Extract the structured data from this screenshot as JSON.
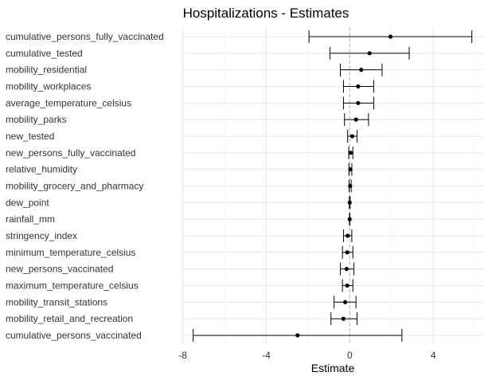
{
  "chart_data": {
    "type": "scatter",
    "title": "Hospitalizations - Estimates",
    "xlabel": "Estimate",
    "ylabel": "",
    "xlim": [
      -8,
      6.3
    ],
    "xticks": [
      -8,
      -4,
      0,
      4
    ],
    "xtick_labels": [
      "-8",
      "-4",
      "0",
      "4"
    ],
    "reference_line": 0,
    "grid": true,
    "error_bars": true,
    "variables": [
      {
        "label": "cumulative_persons_fully_vaccinated",
        "estimate": 1.95,
        "lower": -1.95,
        "upper": 5.85
      },
      {
        "label": "cumulative_tested",
        "estimate": 0.95,
        "lower": -0.95,
        "upper": 2.85
      },
      {
        "label": "mobility_residential",
        "estimate": 0.55,
        "lower": -0.45,
        "upper": 1.55
      },
      {
        "label": "mobility_workplaces",
        "estimate": 0.4,
        "lower": -0.3,
        "upper": 1.15
      },
      {
        "label": "average_temperature_celsius",
        "estimate": 0.4,
        "lower": -0.3,
        "upper": 1.15
      },
      {
        "label": "mobility_parks",
        "estimate": 0.3,
        "lower": -0.25,
        "upper": 0.9
      },
      {
        "label": "new_tested",
        "estimate": 0.12,
        "lower": -0.1,
        "upper": 0.35
      },
      {
        "label": "new_persons_fully_vaccinated",
        "estimate": 0.05,
        "lower": -0.05,
        "upper": 0.15
      },
      {
        "label": "relative_humidity",
        "estimate": 0.03,
        "lower": -0.04,
        "upper": 0.1
      },
      {
        "label": "mobility_grocery_and_pharmacy",
        "estimate": 0.02,
        "lower": -0.03,
        "upper": 0.07
      },
      {
        "label": "dew_point",
        "estimate": 0.0,
        "lower": -0.02,
        "upper": 0.02
      },
      {
        "label": "rainfall_mm",
        "estimate": 0.0,
        "lower": -0.01,
        "upper": 0.01
      },
      {
        "label": "stringency_index",
        "estimate": -0.1,
        "lower": -0.3,
        "upper": 0.1
      },
      {
        "label": "minimum_temperature_celsius",
        "estimate": -0.12,
        "lower": -0.35,
        "upper": 0.15
      },
      {
        "label": "new_persons_vaccinated",
        "estimate": -0.15,
        "lower": -0.45,
        "upper": 0.2
      },
      {
        "label": "maximum_temperature_celsius",
        "estimate": -0.12,
        "lower": -0.35,
        "upper": 0.15
      },
      {
        "label": "mobility_transit_stations",
        "estimate": -0.22,
        "lower": -0.75,
        "upper": 0.3
      },
      {
        "label": "mobility_retail_and_recreation",
        "estimate": -0.3,
        "lower": -0.9,
        "upper": 0.35
      },
      {
        "label": "cumulative_persons_vaccinated",
        "estimate": -2.5,
        "lower": -7.5,
        "upper": 2.5
      }
    ]
  }
}
